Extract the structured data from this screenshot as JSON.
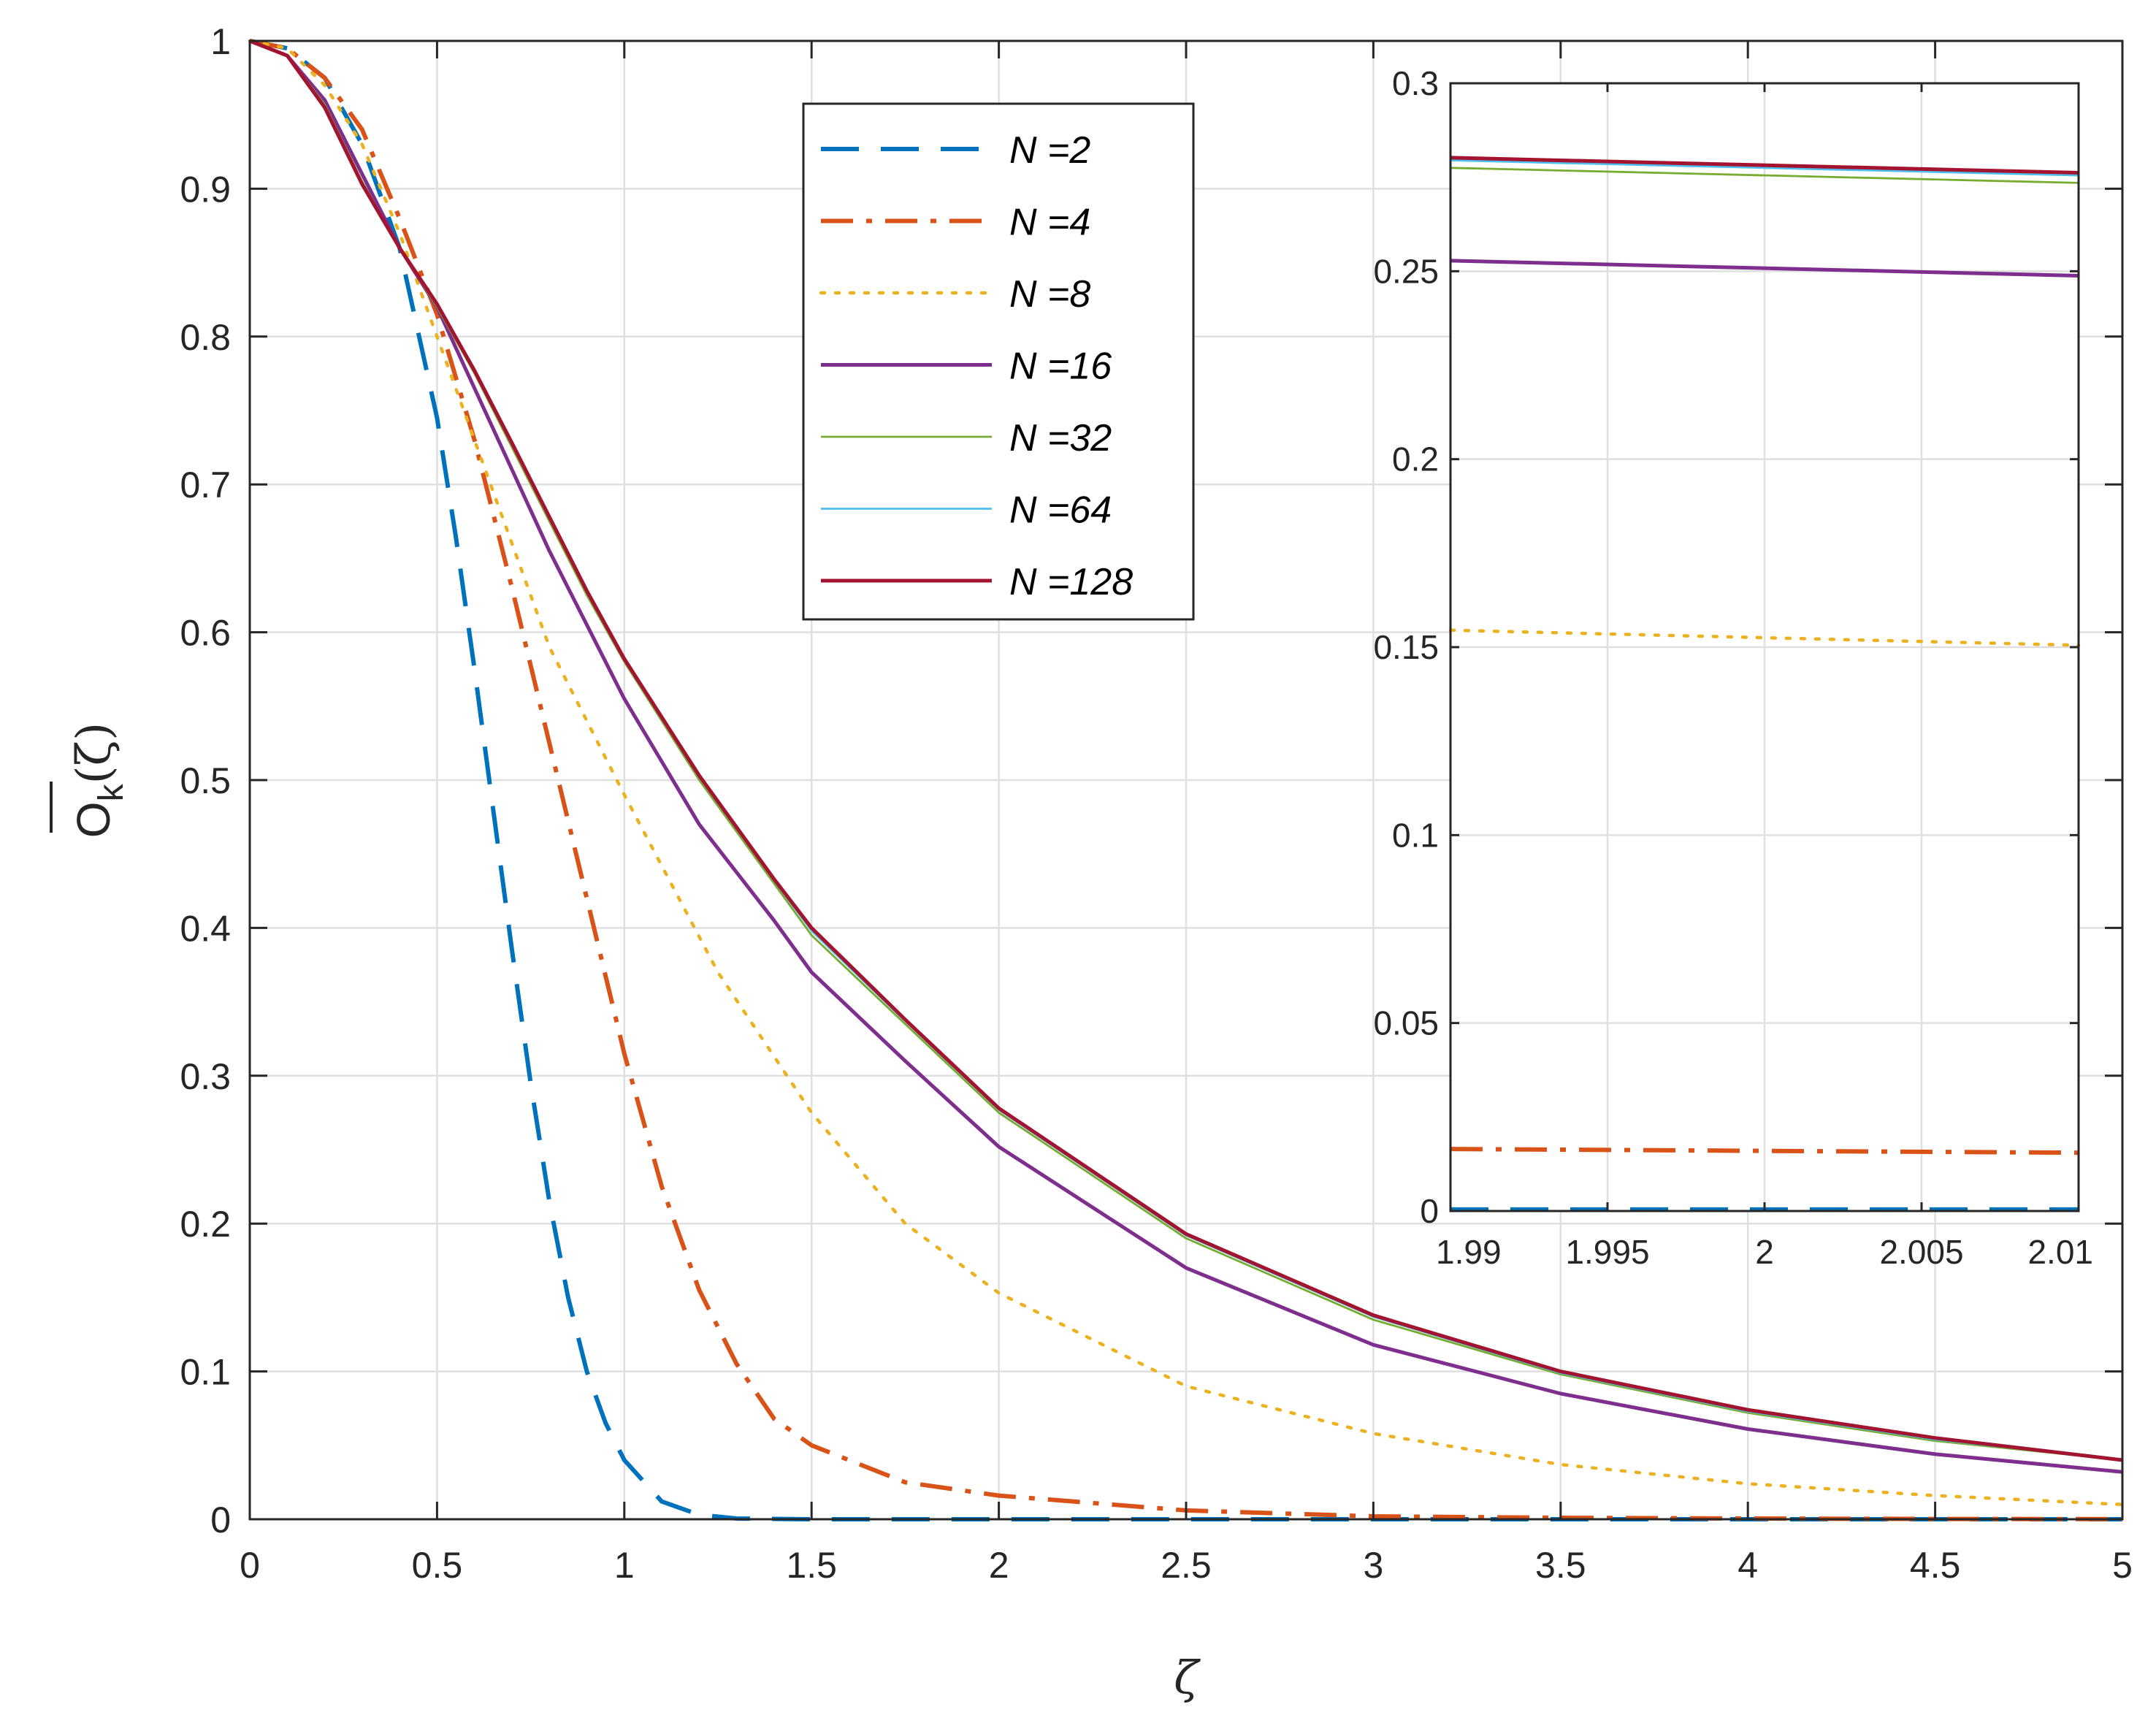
{
  "chart_data": [
    {
      "type": "line",
      "role": "main",
      "title": "",
      "xlabel": "ζ",
      "ylabel": {
        "main": "O",
        "subscript": "k",
        "suffix": "(ζ)",
        "overline": true
      },
      "xlim": [
        0,
        5
      ],
      "ylim": [
        0,
        1
      ],
      "xticks": [
        0,
        0.5,
        1,
        1.5,
        2,
        2.5,
        3,
        3.5,
        4,
        4.5,
        5
      ],
      "xtick_labels": [
        "0",
        "0.5",
        "1",
        "1.5",
        "2",
        "2.5",
        "3",
        "3.5",
        "4",
        "4.5",
        "5"
      ],
      "yticks": [
        0,
        0.1,
        0.2,
        0.3,
        0.4,
        0.5,
        0.6,
        0.7,
        0.8,
        0.9,
        1
      ],
      "ytick_labels": [
        "0",
        "0.1",
        "0.2",
        "0.3",
        "0.4",
        "0.5",
        "0.6",
        "0.7",
        "0.8",
        "0.9",
        "1"
      ],
      "grid": true,
      "legend_position": "top-center",
      "series": [
        {
          "name": "N =2",
          "color": "#0072BD",
          "style": "dashed",
          "points": [
            [
              0,
              1
            ],
            [
              0.1,
              0.995
            ],
            [
              0.2,
              0.975
            ],
            [
              0.3,
              0.93
            ],
            [
              0.4,
              0.86
            ],
            [
              0.5,
              0.745
            ],
            [
              0.55,
              0.665
            ],
            [
              0.6,
              0.575
            ],
            [
              0.65,
              0.48
            ],
            [
              0.7,
              0.385
            ],
            [
              0.75,
              0.295
            ],
            [
              0.8,
              0.215
            ],
            [
              0.85,
              0.15
            ],
            [
              0.9,
              0.1
            ],
            [
              0.95,
              0.065
            ],
            [
              1.0,
              0.04
            ],
            [
              1.1,
              0.012
            ],
            [
              1.2,
              0.003
            ],
            [
              1.3,
              0.0005
            ],
            [
              1.5,
              0
            ],
            [
              2,
              0
            ],
            [
              2.5,
              0
            ],
            [
              3,
              0
            ],
            [
              3.5,
              0
            ],
            [
              4,
              0
            ],
            [
              4.5,
              0
            ],
            [
              5,
              0
            ]
          ]
        },
        {
          "name": "N =4",
          "color": "#D95319",
          "style": "dashdot",
          "points": [
            [
              0,
              1
            ],
            [
              0.1,
              0.995
            ],
            [
              0.2,
              0.975
            ],
            [
              0.3,
              0.94
            ],
            [
              0.4,
              0.88
            ],
            [
              0.5,
              0.815
            ],
            [
              0.6,
              0.73
            ],
            [
              0.7,
              0.63
            ],
            [
              0.8,
              0.525
            ],
            [
              0.9,
              0.42
            ],
            [
              1.0,
              0.315
            ],
            [
              1.1,
              0.225
            ],
            [
              1.2,
              0.155
            ],
            [
              1.3,
              0.105
            ],
            [
              1.4,
              0.068
            ],
            [
              1.5,
              0.05
            ],
            [
              1.75,
              0.025
            ],
            [
              2,
              0.016
            ],
            [
              2.5,
              0.006
            ],
            [
              3,
              0.002
            ],
            [
              3.5,
              0.001
            ],
            [
              4,
              0.0005
            ],
            [
              4.5,
              0.0002
            ],
            [
              5,
              0.0001
            ]
          ]
        },
        {
          "name": "N =8",
          "color": "#EDB120",
          "style": "dotted",
          "points": [
            [
              0,
              1
            ],
            [
              0.1,
              0.995
            ],
            [
              0.2,
              0.97
            ],
            [
              0.3,
              0.93
            ],
            [
              0.4,
              0.87
            ],
            [
              0.5,
              0.8
            ],
            [
              0.6,
              0.73
            ],
            [
              0.7,
              0.66
            ],
            [
              0.8,
              0.59
            ],
            [
              0.9,
              0.54
            ],
            [
              1.0,
              0.49
            ],
            [
              1.25,
              0.37
            ],
            [
              1.5,
              0.275
            ],
            [
              1.75,
              0.2
            ],
            [
              2,
              0.153
            ],
            [
              2.5,
              0.09
            ],
            [
              3,
              0.058
            ],
            [
              3.5,
              0.037
            ],
            [
              4,
              0.024
            ],
            [
              4.5,
              0.016
            ],
            [
              5,
              0.01
            ]
          ]
        },
        {
          "name": "N =16",
          "color": "#7E2F8E",
          "style": "solid",
          "points": [
            [
              0,
              1
            ],
            [
              0.1,
              0.99
            ],
            [
              0.2,
              0.96
            ],
            [
              0.3,
              0.91
            ],
            [
              0.4,
              0.86
            ],
            [
              0.5,
              0.82
            ],
            [
              0.6,
              0.765
            ],
            [
              0.7,
              0.71
            ],
            [
              0.8,
              0.655
            ],
            [
              0.9,
              0.605
            ],
            [
              1.0,
              0.555
            ],
            [
              1.2,
              0.47
            ],
            [
              1.4,
              0.405
            ],
            [
              1.5,
              0.37
            ],
            [
              1.75,
              0.31
            ],
            [
              2,
              0.252
            ],
            [
              2.5,
              0.17
            ],
            [
              3,
              0.118
            ],
            [
              3.5,
              0.085
            ],
            [
              4,
              0.061
            ],
            [
              4.5,
              0.044
            ],
            [
              5,
              0.032
            ]
          ]
        },
        {
          "name": "N =32",
          "color": "#77AC30",
          "style": "solid",
          "points": [
            [
              0,
              1
            ],
            [
              0.1,
              0.99
            ],
            [
              0.2,
              0.957
            ],
            [
              0.3,
              0.905
            ],
            [
              0.4,
              0.86
            ],
            [
              0.5,
              0.82
            ],
            [
              0.6,
              0.775
            ],
            [
              0.7,
              0.725
            ],
            [
              0.8,
              0.675
            ],
            [
              0.9,
              0.625
            ],
            [
              1.0,
              0.58
            ],
            [
              1.2,
              0.5
            ],
            [
              1.4,
              0.43
            ],
            [
              1.5,
              0.395
            ],
            [
              1.75,
              0.335
            ],
            [
              2,
              0.275
            ],
            [
              2.5,
              0.19
            ],
            [
              3,
              0.135
            ],
            [
              3.5,
              0.098
            ],
            [
              4,
              0.072
            ],
            [
              4.5,
              0.053
            ],
            [
              5,
              0.04
            ]
          ]
        },
        {
          "name": "N =64",
          "color": "#4DBEEE",
          "style": "solid",
          "points": [
            [
              0,
              1
            ],
            [
              0.1,
              0.99
            ],
            [
              0.2,
              0.956
            ],
            [
              0.3,
              0.904
            ],
            [
              0.4,
              0.86
            ],
            [
              0.5,
              0.821
            ],
            [
              0.6,
              0.776
            ],
            [
              0.7,
              0.727
            ],
            [
              0.8,
              0.677
            ],
            [
              0.9,
              0.627
            ],
            [
              1.0,
              0.581
            ],
            [
              1.2,
              0.502
            ],
            [
              1.4,
              0.432
            ],
            [
              1.5,
              0.398
            ],
            [
              1.75,
              0.337
            ],
            [
              2,
              0.277
            ],
            [
              2.5,
              0.192
            ],
            [
              3,
              0.137
            ],
            [
              3.5,
              0.099
            ],
            [
              4,
              0.073
            ],
            [
              4.5,
              0.054
            ],
            [
              5,
              0.04
            ]
          ]
        },
        {
          "name": "N =128",
          "color": "#A2142F",
          "style": "solid",
          "points": [
            [
              0,
              1
            ],
            [
              0.1,
              0.99
            ],
            [
              0.2,
              0.955
            ],
            [
              0.3,
              0.903
            ],
            [
              0.4,
              0.86
            ],
            [
              0.5,
              0.822
            ],
            [
              0.6,
              0.777
            ],
            [
              0.7,
              0.728
            ],
            [
              0.8,
              0.678
            ],
            [
              0.9,
              0.628
            ],
            [
              1.0,
              0.582
            ],
            [
              1.2,
              0.503
            ],
            [
              1.4,
              0.433
            ],
            [
              1.5,
              0.4
            ],
            [
              1.75,
              0.338
            ],
            [
              2,
              0.278
            ],
            [
              2.5,
              0.193
            ],
            [
              3,
              0.138
            ],
            [
              3.5,
              0.1
            ],
            [
              4,
              0.074
            ],
            [
              4.5,
              0.055
            ],
            [
              5,
              0.04
            ]
          ]
        }
      ]
    },
    {
      "type": "line",
      "role": "inset",
      "xlim": [
        1.99,
        2.01
      ],
      "ylim": [
        0,
        0.3
      ],
      "xticks": [
        1.99,
        1.995,
        2,
        2.005,
        2.01
      ],
      "xtick_labels": [
        "1.99",
        "1.995",
        "2",
        "2.005",
        "2.01"
      ],
      "yticks": [
        0,
        0.05,
        0.1,
        0.15,
        0.2,
        0.25,
        0.3
      ],
      "ytick_labels": [
        "0",
        "0.05",
        "0.1",
        "0.15",
        "0.2",
        "0.25",
        "0.3"
      ],
      "grid": true,
      "series": [
        {
          "name": "N =2",
          "color": "#0072BD",
          "style": "dashed",
          "points": [
            [
              1.99,
              0.0004
            ],
            [
              2.01,
              0.0004
            ]
          ]
        },
        {
          "name": "N =4",
          "color": "#D95319",
          "style": "dashdot",
          "points": [
            [
              1.99,
              0.0165
            ],
            [
              2.01,
              0.0155
            ]
          ]
        },
        {
          "name": "N =8",
          "color": "#EDB120",
          "style": "dotted",
          "points": [
            [
              1.99,
              0.1545
            ],
            [
              2.01,
              0.1505
            ]
          ]
        },
        {
          "name": "N =16",
          "color": "#7E2F8E",
          "style": "solid",
          "points": [
            [
              1.99,
              0.2528
            ],
            [
              2.01,
              0.2488
            ]
          ]
        },
        {
          "name": "N =32",
          "color": "#77AC30",
          "style": "solid",
          "points": [
            [
              1.99,
              0.2775
            ],
            [
              2.01,
              0.2735
            ]
          ]
        },
        {
          "name": "N =64",
          "color": "#4DBEEE",
          "style": "solid",
          "points": [
            [
              1.99,
              0.2795
            ],
            [
              2.01,
              0.2755
            ]
          ]
        },
        {
          "name": "N =128",
          "color": "#A2142F",
          "style": "solid",
          "points": [
            [
              1.99,
              0.2802
            ],
            [
              2.01,
              0.2762
            ]
          ]
        }
      ]
    }
  ]
}
